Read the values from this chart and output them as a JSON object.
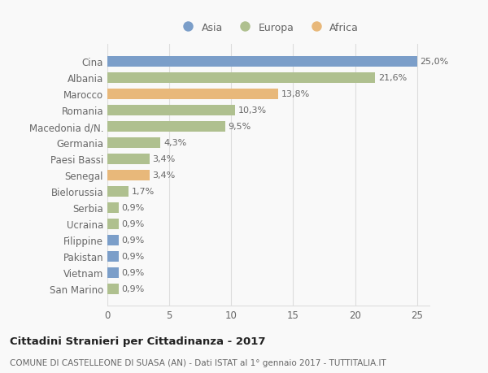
{
  "categories": [
    "Cina",
    "Albania",
    "Marocco",
    "Romania",
    "Macedonia d/N.",
    "Germania",
    "Paesi Bassi",
    "Senegal",
    "Bielorussia",
    "Serbia",
    "Ucraina",
    "Filippine",
    "Pakistan",
    "Vietnam",
    "San Marino"
  ],
  "values": [
    25.0,
    21.6,
    13.8,
    10.3,
    9.5,
    4.3,
    3.4,
    3.4,
    1.7,
    0.9,
    0.9,
    0.9,
    0.9,
    0.9,
    0.9
  ],
  "labels": [
    "25,0%",
    "21,6%",
    "13,8%",
    "10,3%",
    "9,5%",
    "4,3%",
    "3,4%",
    "3,4%",
    "1,7%",
    "0,9%",
    "0,9%",
    "0,9%",
    "0,9%",
    "0,9%",
    "0,9%"
  ],
  "colors": [
    "#7b9ec9",
    "#afc08f",
    "#e8b87a",
    "#afc08f",
    "#afc08f",
    "#afc08f",
    "#afc08f",
    "#e8b87a",
    "#afc08f",
    "#afc08f",
    "#afc08f",
    "#7b9ec9",
    "#7b9ec9",
    "#7b9ec9",
    "#afc08f"
  ],
  "legend_labels": [
    "Asia",
    "Europa",
    "Africa"
  ],
  "legend_colors": [
    "#7b9ec9",
    "#afc08f",
    "#e8b87a"
  ],
  "xlim": [
    0,
    26
  ],
  "xticks": [
    0,
    5,
    10,
    15,
    20,
    25
  ],
  "title": "Cittadini Stranieri per Cittadinanza - 2017",
  "subtitle": "COMUNE DI CASTELLEONE DI SUASA (AN) - Dati ISTAT al 1° gennaio 2017 - TUTTITALIA.IT",
  "background_color": "#f9f9f9",
  "grid_color": "#dddddd",
  "label_color": "#666666",
  "bar_height": 0.65
}
